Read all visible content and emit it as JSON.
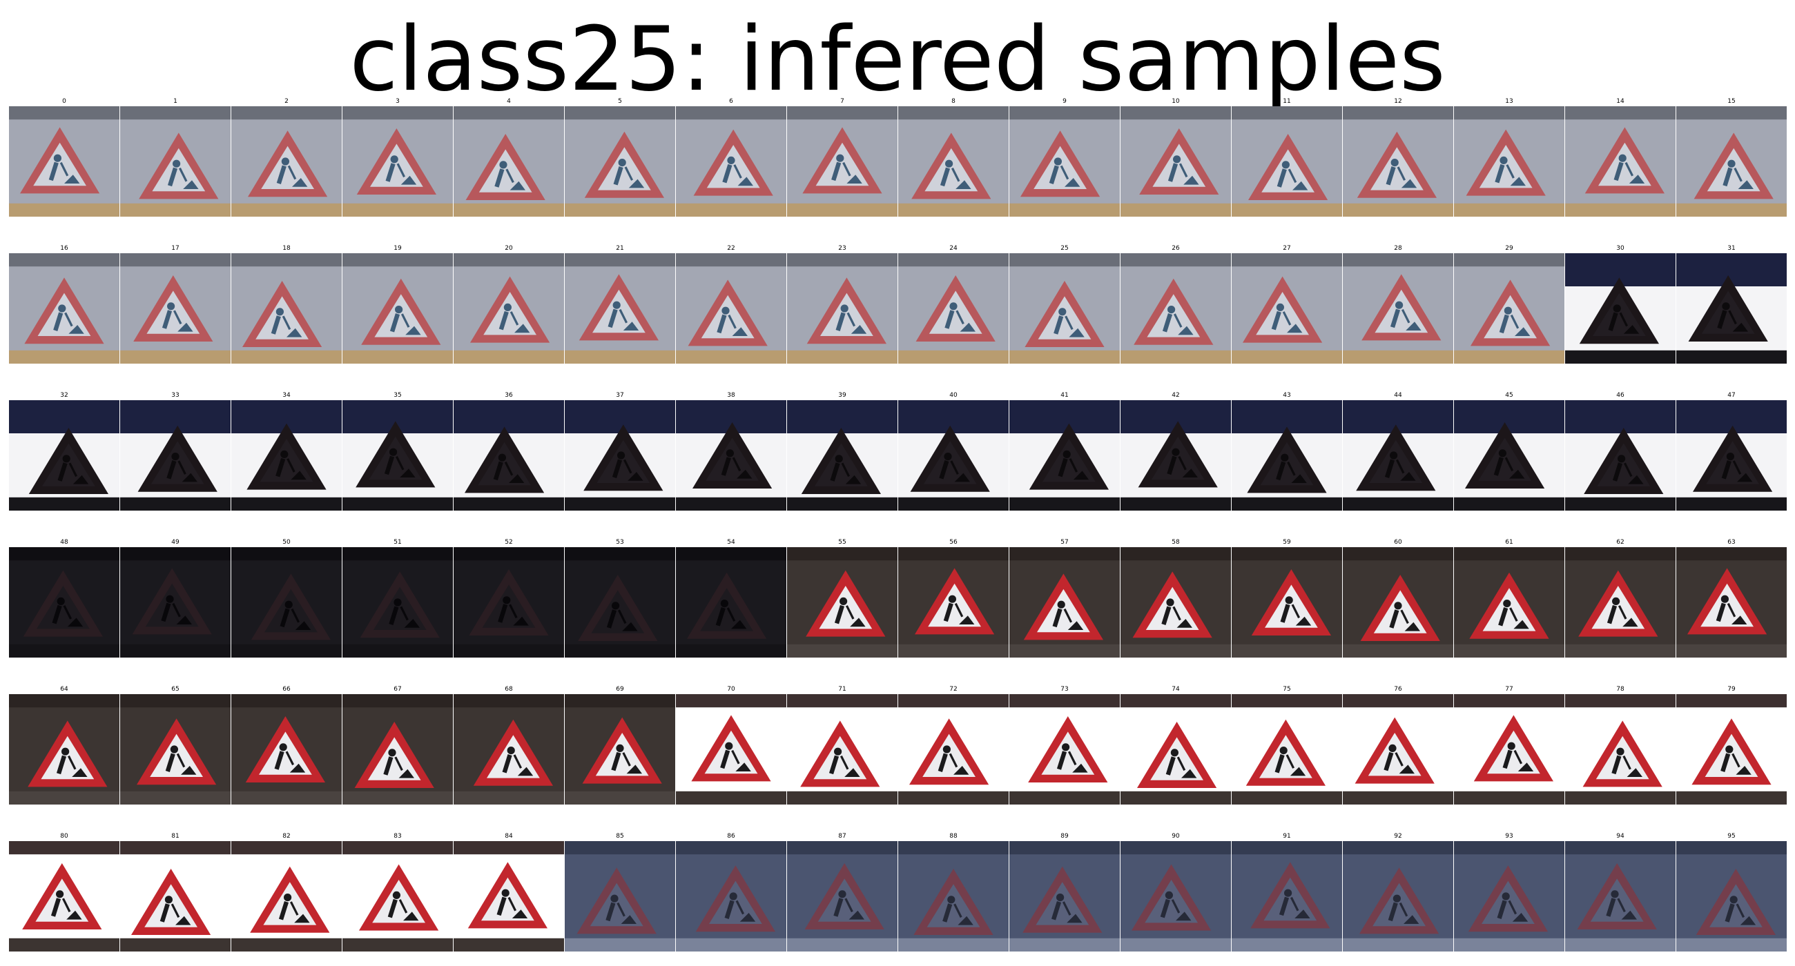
{
  "title": "class25: infered samples",
  "samples": [
    {
      "label": "0",
      "scene": "gray"
    },
    {
      "label": "1",
      "scene": "gray"
    },
    {
      "label": "2",
      "scene": "gray"
    },
    {
      "label": "3",
      "scene": "gray"
    },
    {
      "label": "4",
      "scene": "gray"
    },
    {
      "label": "5",
      "scene": "gray"
    },
    {
      "label": "6",
      "scene": "gray"
    },
    {
      "label": "7",
      "scene": "gray"
    },
    {
      "label": "8",
      "scene": "gray"
    },
    {
      "label": "9",
      "scene": "gray"
    },
    {
      "label": "10",
      "scene": "gray"
    },
    {
      "label": "11",
      "scene": "gray"
    },
    {
      "label": "12",
      "scene": "gray"
    },
    {
      "label": "13",
      "scene": "gray"
    },
    {
      "label": "14",
      "scene": "gray"
    },
    {
      "label": "15",
      "scene": "gray"
    },
    {
      "label": "16",
      "scene": "gray"
    },
    {
      "label": "17",
      "scene": "gray"
    },
    {
      "label": "18",
      "scene": "gray"
    },
    {
      "label": "19",
      "scene": "gray"
    },
    {
      "label": "20",
      "scene": "gray"
    },
    {
      "label": "21",
      "scene": "gray"
    },
    {
      "label": "22",
      "scene": "gray"
    },
    {
      "label": "23",
      "scene": "gray"
    },
    {
      "label": "24",
      "scene": "gray"
    },
    {
      "label": "25",
      "scene": "gray"
    },
    {
      "label": "26",
      "scene": "gray"
    },
    {
      "label": "27",
      "scene": "gray"
    },
    {
      "label": "28",
      "scene": "gray"
    },
    {
      "label": "29",
      "scene": "gray"
    },
    {
      "label": "30",
      "scene": "darkband"
    },
    {
      "label": "31",
      "scene": "darkband"
    },
    {
      "label": "32",
      "scene": "darkband"
    },
    {
      "label": "33",
      "scene": "darkband"
    },
    {
      "label": "34",
      "scene": "darkband"
    },
    {
      "label": "35",
      "scene": "darkband"
    },
    {
      "label": "36",
      "scene": "darkband"
    },
    {
      "label": "37",
      "scene": "darkband"
    },
    {
      "label": "38",
      "scene": "darkband"
    },
    {
      "label": "39",
      "scene": "darkband"
    },
    {
      "label": "40",
      "scene": "darkband"
    },
    {
      "label": "41",
      "scene": "darkband"
    },
    {
      "label": "42",
      "scene": "darkband"
    },
    {
      "label": "43",
      "scene": "darkband"
    },
    {
      "label": "44",
      "scene": "darkband"
    },
    {
      "label": "45",
      "scene": "darkband"
    },
    {
      "label": "46",
      "scene": "darkband"
    },
    {
      "label": "47",
      "scene": "darkband"
    },
    {
      "label": "48",
      "scene": "night"
    },
    {
      "label": "49",
      "scene": "night"
    },
    {
      "label": "50",
      "scene": "night"
    },
    {
      "label": "51",
      "scene": "night"
    },
    {
      "label": "52",
      "scene": "night"
    },
    {
      "label": "53",
      "scene": "night"
    },
    {
      "label": "54",
      "scene": "night"
    },
    {
      "label": "55",
      "scene": "street"
    },
    {
      "label": "56",
      "scene": "street"
    },
    {
      "label": "57",
      "scene": "street"
    },
    {
      "label": "58",
      "scene": "street"
    },
    {
      "label": "59",
      "scene": "street"
    },
    {
      "label": "60",
      "scene": "street"
    },
    {
      "label": "61",
      "scene": "street"
    },
    {
      "label": "62",
      "scene": "street"
    },
    {
      "label": "63",
      "scene": "street"
    },
    {
      "label": "64",
      "scene": "street"
    },
    {
      "label": "65",
      "scene": "street"
    },
    {
      "label": "66",
      "scene": "street"
    },
    {
      "label": "67",
      "scene": "street"
    },
    {
      "label": "68",
      "scene": "street"
    },
    {
      "label": "69",
      "scene": "street"
    },
    {
      "label": "70",
      "scene": "bright"
    },
    {
      "label": "71",
      "scene": "bright"
    },
    {
      "label": "72",
      "scene": "bright"
    },
    {
      "label": "73",
      "scene": "bright"
    },
    {
      "label": "74",
      "scene": "bright"
    },
    {
      "label": "75",
      "scene": "bright"
    },
    {
      "label": "76",
      "scene": "bright"
    },
    {
      "label": "77",
      "scene": "bright"
    },
    {
      "label": "78",
      "scene": "bright"
    },
    {
      "label": "79",
      "scene": "bright"
    },
    {
      "label": "80",
      "scene": "bright"
    },
    {
      "label": "81",
      "scene": "bright"
    },
    {
      "label": "82",
      "scene": "bright"
    },
    {
      "label": "83",
      "scene": "bright"
    },
    {
      "label": "84",
      "scene": "bright"
    },
    {
      "label": "85",
      "scene": "building"
    },
    {
      "label": "86",
      "scene": "building"
    },
    {
      "label": "87",
      "scene": "building"
    },
    {
      "label": "88",
      "scene": "building"
    },
    {
      "label": "89",
      "scene": "building"
    },
    {
      "label": "90",
      "scene": "building"
    },
    {
      "label": "91",
      "scene": "building"
    },
    {
      "label": "92",
      "scene": "building"
    },
    {
      "label": "93",
      "scene": "building"
    },
    {
      "label": "94",
      "scene": "building"
    },
    {
      "label": "95",
      "scene": "building"
    }
  ],
  "palettes": {
    "gray": {
      "bg": "#a3a7b3",
      "top": "#6a6e78",
      "bottom": "#b89c70",
      "tri": "#b7585c",
      "inner": "#cfd2da",
      "fig": "#3f5d78"
    },
    "darkband": {
      "bg": "#f4f4f6",
      "top": "#1c2140",
      "bottom": "#17161a",
      "tri": "#1c1619",
      "inner": "#221d22",
      "fig": "#0c0a0c"
    },
    "night": {
      "bg": "#1a191e",
      "top": "#0f0e12",
      "bottom": "#141317",
      "tri": "#2a1d22",
      "inner": "#1d1a1f",
      "fig": "#08070a"
    },
    "street": {
      "bg": "#3c3532",
      "top": "#2b2422",
      "bottom": "#4a4340",
      "tri": "#c2262d",
      "inner": "#ececef",
      "fig": "#1a1a1c"
    },
    "bright": {
      "bg": "#ffffff",
      "top": "#3d3030",
      "bottom": "#3c3431",
      "tri": "#c2262d",
      "inner": "#ececef",
      "fig": "#1a1a1c"
    },
    "building": {
      "bg": "#4b5570",
      "top": "#343c52",
      "bottom": "#7a839a",
      "tri": "#743e4c",
      "inner": "#59607a",
      "fig": "#262a38"
    }
  }
}
